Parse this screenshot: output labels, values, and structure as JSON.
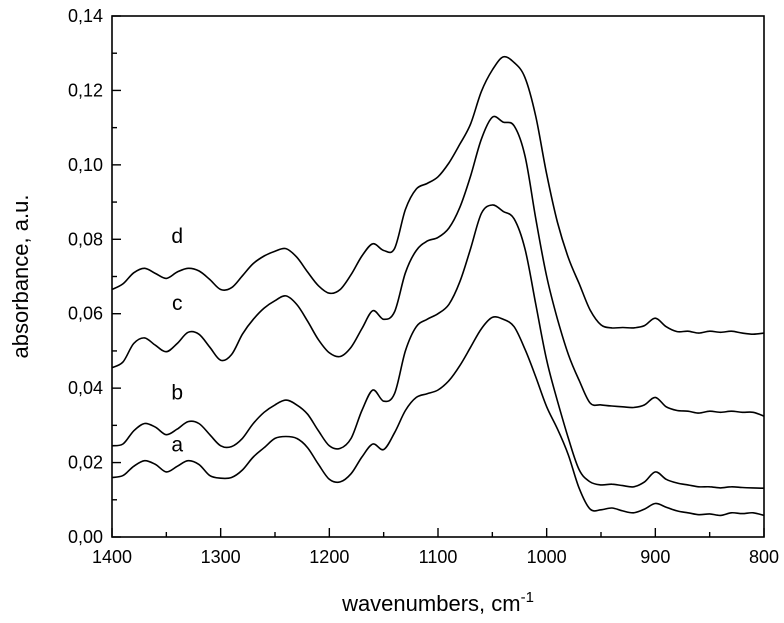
{
  "chart_data": {
    "type": "line",
    "xlabel": "wavenumbers, cm",
    "xlabel_superscript": "-1",
    "ylabel": "absorbance, a.u.",
    "xlim": [
      1400,
      800
    ],
    "ylim": [
      0,
      0.14
    ],
    "x_reversed": true,
    "grid": false,
    "legend": "none",
    "x_ticks": [
      {
        "value": 1400,
        "label": "1400"
      },
      {
        "value": 1300,
        "label": "1300"
      },
      {
        "value": 1200,
        "label": "1200"
      },
      {
        "value": 1100,
        "label": "1100"
      },
      {
        "value": 1000,
        "label": "1000"
      },
      {
        "value": 900,
        "label": "900"
      },
      {
        "value": 800,
        "label": "800"
      }
    ],
    "y_ticks": [
      {
        "value": 0.0,
        "label": "0,00"
      },
      {
        "value": 0.02,
        "label": "0,02"
      },
      {
        "value": 0.04,
        "label": "0,04"
      },
      {
        "value": 0.06,
        "label": "0,06"
      },
      {
        "value": 0.08,
        "label": "0,08"
      },
      {
        "value": 0.1,
        "label": "0,10"
      },
      {
        "value": 0.12,
        "label": "0,12"
      },
      {
        "value": 0.14,
        "label": "0,14"
      }
    ],
    "x": [
      1400,
      1390,
      1380,
      1370,
      1360,
      1350,
      1340,
      1330,
      1320,
      1310,
      1300,
      1290,
      1280,
      1270,
      1260,
      1250,
      1240,
      1230,
      1220,
      1210,
      1200,
      1190,
      1180,
      1170,
      1160,
      1150,
      1140,
      1130,
      1120,
      1110,
      1100,
      1090,
      1080,
      1070,
      1060,
      1050,
      1040,
      1030,
      1020,
      1010,
      1000,
      990,
      980,
      970,
      960,
      950,
      940,
      930,
      920,
      910,
      900,
      890,
      880,
      870,
      860,
      850,
      840,
      830,
      820,
      810,
      800
    ],
    "series": [
      {
        "name": "a",
        "label_at": {
          "x": 1340,
          "y": 0.023
        },
        "values": [
          0.016,
          0.0165,
          0.019,
          0.0205,
          0.0195,
          0.0175,
          0.019,
          0.0205,
          0.0195,
          0.0165,
          0.0158,
          0.016,
          0.018,
          0.0215,
          0.024,
          0.0265,
          0.027,
          0.0265,
          0.024,
          0.0195,
          0.0155,
          0.0148,
          0.017,
          0.0215,
          0.025,
          0.0235,
          0.028,
          0.034,
          0.0375,
          0.0385,
          0.0395,
          0.042,
          0.046,
          0.051,
          0.056,
          0.059,
          0.0585,
          0.0565,
          0.0505,
          0.043,
          0.035,
          0.029,
          0.022,
          0.013,
          0.0075,
          0.0073,
          0.0078,
          0.007,
          0.0065,
          0.0075,
          0.009,
          0.008,
          0.007,
          0.0065,
          0.006,
          0.0062,
          0.0058,
          0.0065,
          0.0063,
          0.0065,
          0.0058
        ]
      },
      {
        "name": "b",
        "label_at": {
          "x": 1340,
          "y": 0.037
        },
        "values": [
          0.0245,
          0.025,
          0.0285,
          0.0305,
          0.0295,
          0.0275,
          0.029,
          0.031,
          0.0305,
          0.0275,
          0.0245,
          0.0243,
          0.0265,
          0.0305,
          0.0335,
          0.0355,
          0.0368,
          0.0355,
          0.033,
          0.0285,
          0.0245,
          0.0238,
          0.0265,
          0.034,
          0.0395,
          0.0365,
          0.0385,
          0.05,
          0.0565,
          0.0585,
          0.06,
          0.0625,
          0.0685,
          0.0775,
          0.087,
          0.0892,
          0.0875,
          0.0855,
          0.0775,
          0.0625,
          0.0475,
          0.0365,
          0.0265,
          0.018,
          0.0148,
          0.014,
          0.0142,
          0.0138,
          0.0135,
          0.0148,
          0.0175,
          0.0155,
          0.0145,
          0.014,
          0.0135,
          0.0135,
          0.0132,
          0.0135,
          0.0133,
          0.0132,
          0.0131
        ]
      },
      {
        "name": "c",
        "label_at": {
          "x": 1340,
          "y": 0.061
        },
        "values": [
          0.0455,
          0.047,
          0.052,
          0.0535,
          0.0515,
          0.0498,
          0.052,
          0.055,
          0.0545,
          0.051,
          0.0475,
          0.049,
          0.0545,
          0.0585,
          0.0615,
          0.0635,
          0.0648,
          0.0625,
          0.058,
          0.053,
          0.0495,
          0.0485,
          0.051,
          0.056,
          0.0608,
          0.0585,
          0.0605,
          0.071,
          0.077,
          0.0795,
          0.0805,
          0.083,
          0.0885,
          0.097,
          0.107,
          0.1128,
          0.1115,
          0.1105,
          0.1025,
          0.0855,
          0.07,
          0.0585,
          0.049,
          0.042,
          0.036,
          0.0355,
          0.0352,
          0.035,
          0.0348,
          0.0355,
          0.0375,
          0.035,
          0.034,
          0.0338,
          0.0333,
          0.0338,
          0.0335,
          0.0338,
          0.0335,
          0.0335,
          0.0325
        ]
      },
      {
        "name": "d",
        "label_at": {
          "x": 1340,
          "y": 0.079
        },
        "values": [
          0.0665,
          0.068,
          0.071,
          0.0722,
          0.0708,
          0.0695,
          0.0712,
          0.0722,
          0.0715,
          0.0692,
          0.0665,
          0.067,
          0.0702,
          0.0735,
          0.0755,
          0.0768,
          0.0775,
          0.0752,
          0.0712,
          0.0675,
          0.0655,
          0.0665,
          0.0705,
          0.0755,
          0.0788,
          0.077,
          0.0775,
          0.088,
          0.0935,
          0.095,
          0.0968,
          0.1005,
          0.1055,
          0.111,
          0.1198,
          0.1255,
          0.129,
          0.1275,
          0.1235,
          0.113,
          0.0975,
          0.0845,
          0.075,
          0.068,
          0.061,
          0.057,
          0.0562,
          0.0563,
          0.0562,
          0.0568,
          0.0588,
          0.0565,
          0.0552,
          0.0553,
          0.0548,
          0.0553,
          0.055,
          0.0553,
          0.0548,
          0.0545,
          0.0548
        ]
      }
    ]
  }
}
